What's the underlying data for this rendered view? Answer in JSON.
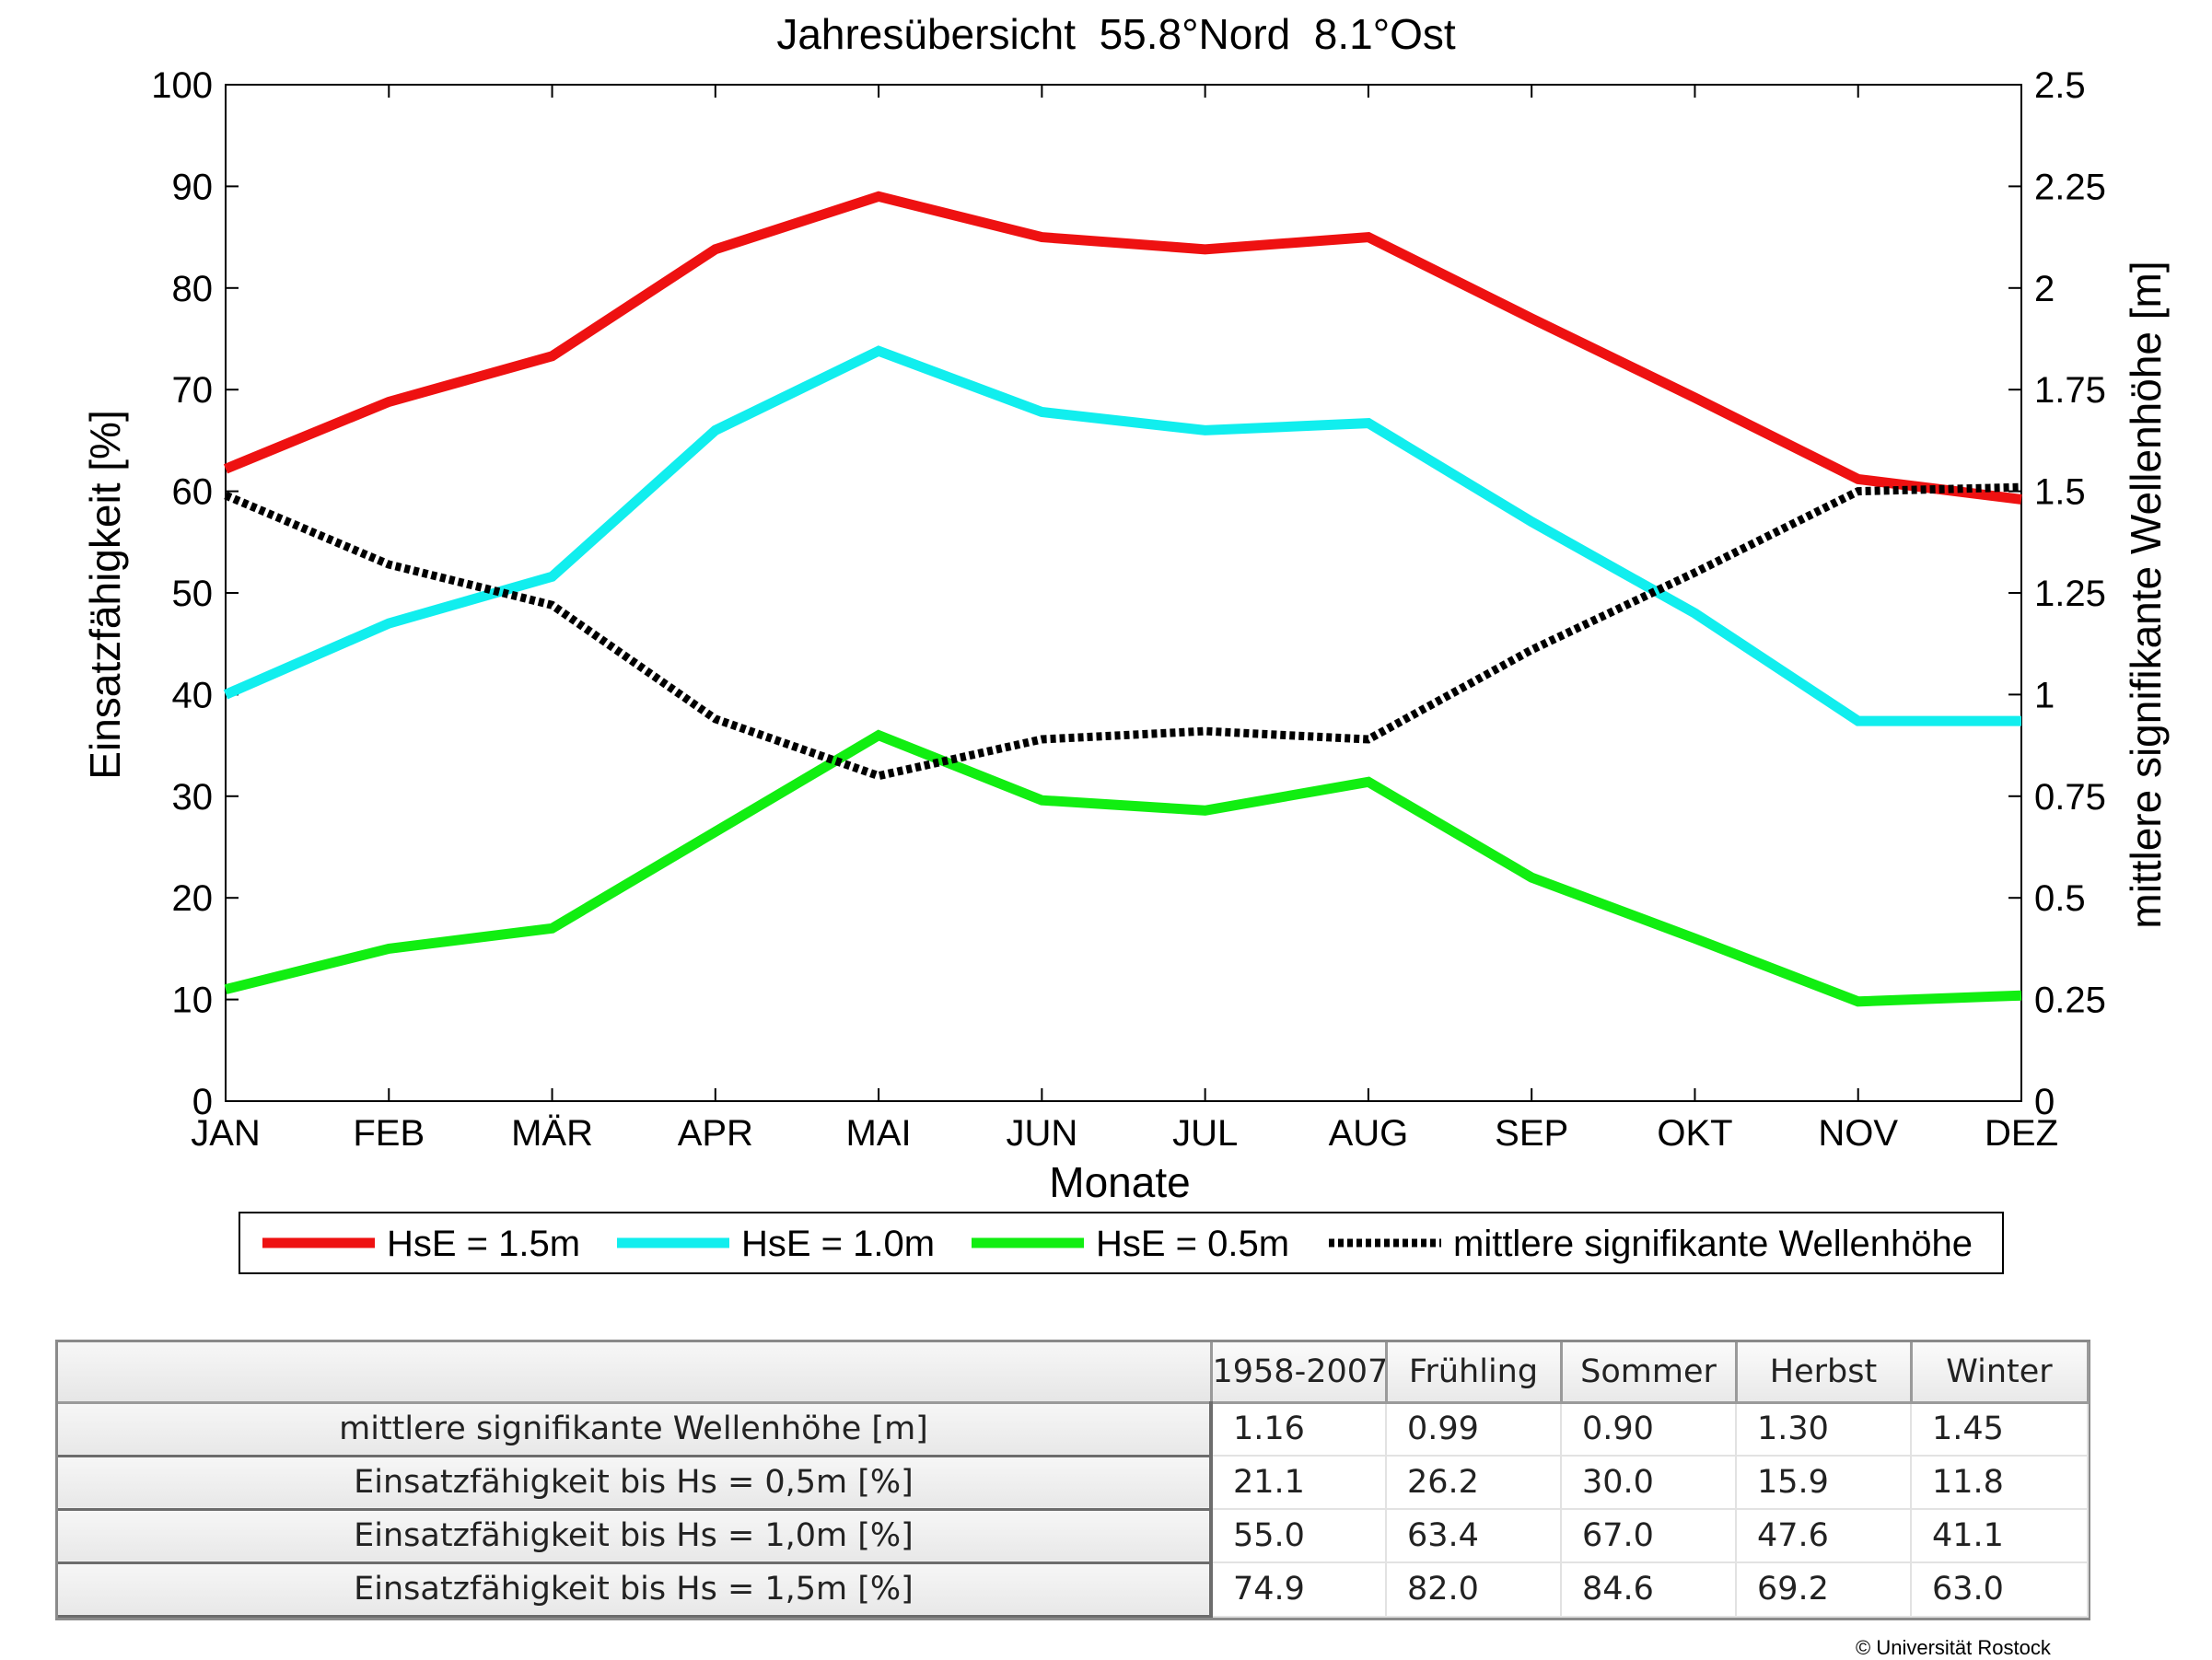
{
  "chart_data": {
    "type": "line",
    "title": "Jahresübersicht  55.8°Nord  8.1°Ost",
    "xlabel": "Monate",
    "ylabel": "Einsatzfähigkeit [%]",
    "y2label": "mittlere signifikante Wellenhöhe [m]",
    "categories": [
      "JAN",
      "FEB",
      "MÄR",
      "APR",
      "MAI",
      "JUN",
      "JUL",
      "AUG",
      "SEP",
      "OKT",
      "NOV",
      "DEZ"
    ],
    "ylim": [
      0,
      100
    ],
    "y2lim": [
      0,
      2.5
    ],
    "yticks": [
      "0",
      "10",
      "20",
      "30",
      "40",
      "50",
      "60",
      "70",
      "80",
      "90",
      "100"
    ],
    "y2ticks": [
      "0",
      "0.25",
      "0.5",
      "0.75",
      "1",
      "1.25",
      "1.5",
      "1.75",
      "2",
      "2.25",
      "2.5"
    ],
    "grid": false,
    "legend_position": "bottom",
    "series": [
      {
        "name": "HsE = 1.5m",
        "axis": "left",
        "color": "#ee1111",
        "style": "solid",
        "values": [
          62.2,
          68.8,
          73.3,
          83.8,
          89.0,
          85.0,
          83.8,
          85.0,
          77.0,
          69.2,
          61.2,
          59.2
        ]
      },
      {
        "name": "HsE = 1.0m",
        "axis": "left",
        "color": "#11eeee",
        "style": "solid",
        "values": [
          40.0,
          47.0,
          51.6,
          66.0,
          73.8,
          67.8,
          66.0,
          66.7,
          57.0,
          48.0,
          37.4,
          37.4
        ]
      },
      {
        "name": "HsE = 0.5m",
        "axis": "left",
        "color": "#11ee11",
        "style": "solid",
        "values": [
          11.0,
          15.0,
          17.0,
          26.5,
          36.0,
          29.6,
          28.6,
          31.4,
          22.0,
          16.0,
          9.8,
          10.4
        ]
      },
      {
        "name": "mittlere signifikante Wellenhöhe",
        "axis": "right",
        "color": "#000000",
        "style": "dotted",
        "values": [
          1.49,
          1.32,
          1.22,
          0.94,
          0.8,
          0.89,
          0.91,
          0.89,
          1.11,
          1.3,
          1.5,
          1.51
        ]
      }
    ]
  },
  "table": {
    "columns": [
      "1958-2007",
      "Frühling",
      "Sommer",
      "Herbst",
      "Winter"
    ],
    "rows": [
      {
        "label": "mittlere signifikante Wellenhöhe [m]",
        "values": [
          "1.16",
          "0.99",
          "0.90",
          "1.30",
          "1.45"
        ]
      },
      {
        "label": "Einsatzfähigkeit bis Hs = 0,5m [%]",
        "values": [
          "21.1",
          "26.2",
          "30.0",
          "15.9",
          "11.8"
        ]
      },
      {
        "label": "Einsatzfähigkeit bis Hs = 1,0m [%]",
        "values": [
          "55.0",
          "63.4",
          "67.0",
          "47.6",
          "41.1"
        ]
      },
      {
        "label": "Einsatzfähigkeit bis Hs = 1,5m [%]",
        "values": [
          "74.9",
          "82.0",
          "84.6",
          "69.2",
          "63.0"
        ]
      }
    ]
  },
  "footer": {
    "copyright": "© Universität Rostock"
  }
}
